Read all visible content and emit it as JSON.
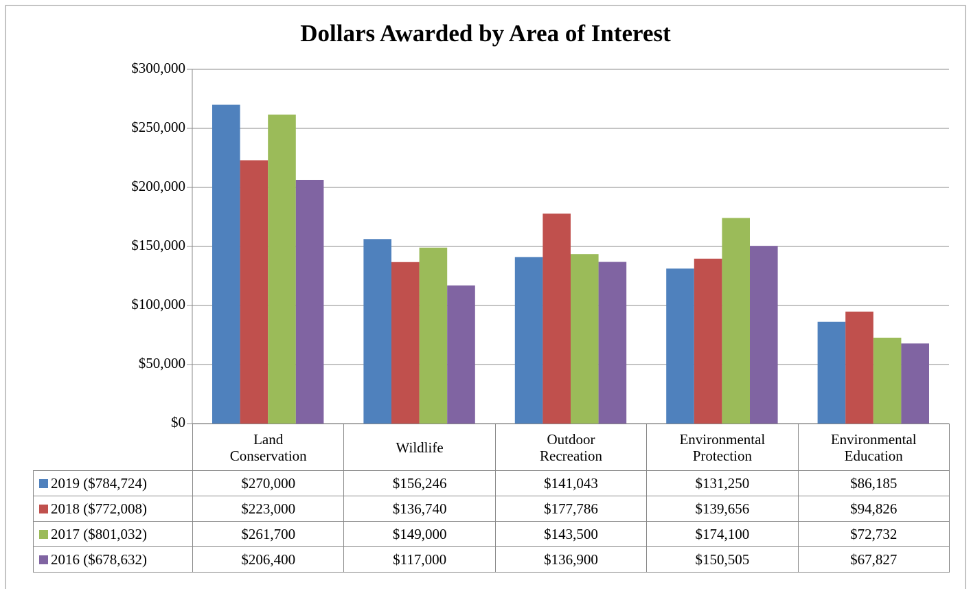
{
  "chart_data": {
    "type": "bar",
    "title": "Dollars Awarded by Area of Interest",
    "categories": [
      "Land Conservation",
      "Wildlife",
      "Outdoor Recreation",
      "Environmental Protection",
      "Environmental Education"
    ],
    "series": [
      {
        "name": "2019 ($784,724)",
        "color": "#4f81bd",
        "values": [
          270000,
          156246,
          141043,
          131250,
          86185
        ],
        "value_labels": [
          "$270,000",
          "$156,246",
          "$141,043",
          "$131,250",
          "$86,185"
        ]
      },
      {
        "name": "2018 ($772,008)",
        "color": "#c0504d",
        "values": [
          223000,
          136740,
          177786,
          139656,
          94826
        ],
        "value_labels": [
          "$223,000",
          "$136,740",
          "$177,786",
          "$139,656",
          "$94,826"
        ]
      },
      {
        "name": "2017 ($801,032)",
        "color": "#9bbb59",
        "values": [
          261700,
          149000,
          143500,
          174100,
          72732
        ],
        "value_labels": [
          "$261,700",
          "$149,000",
          "$143,500",
          "$174,100",
          "$72,732"
        ]
      },
      {
        "name": "2016 ($678,632)",
        "color": "#8064a2",
        "values": [
          206400,
          117000,
          136900,
          150505,
          67827
        ],
        "value_labels": [
          "$206,400",
          "$117,000",
          "$136,900",
          "$150,505",
          "$67,827"
        ]
      }
    ],
    "ylim": [
      0,
      300000
    ],
    "yticks": [
      {
        "value": 0,
        "label": "$0"
      },
      {
        "value": 50000,
        "label": "$50,000"
      },
      {
        "value": 100000,
        "label": "$100,000"
      },
      {
        "value": 150000,
        "label": "$150,000"
      },
      {
        "value": 200000,
        "label": "$200,000"
      },
      {
        "value": 250000,
        "label": "$250,000"
      },
      {
        "value": 300000,
        "label": "$300,000"
      }
    ],
    "grid": true,
    "legend": "table"
  }
}
